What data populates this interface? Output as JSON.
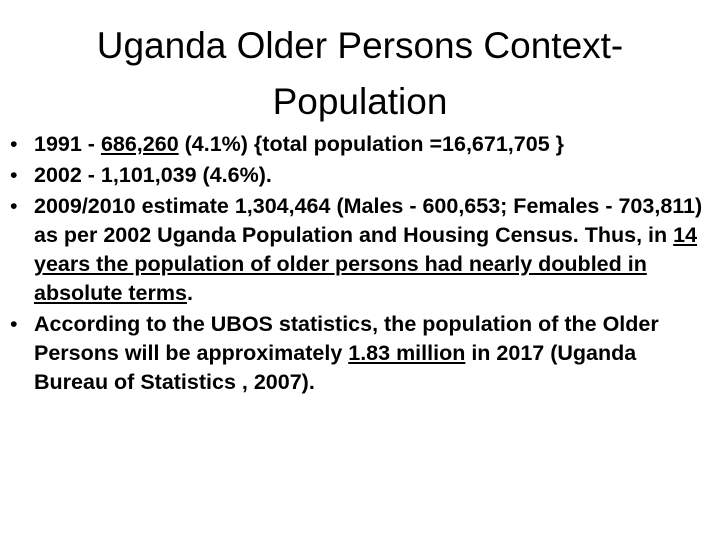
{
  "slide": {
    "title_line1": "Uganda Older Persons Context-",
    "title_line2": "Population",
    "bullet_glyph": "•",
    "bullets": [
      {
        "p1": "1991 - ",
        "u1": "686,260",
        "p2": " (4.1%)  {total population =16,671,705 }"
      },
      {
        "p1": "2002 - 1,101,039 (4.6%)."
      },
      {
        "p1": "2009/2010 estimate 1,304,464 (Males - 600,653; Females - 703,811) as per 2002 Uganda Population and Housing Census. Thus, in ",
        "u1": "14 years the population of older persons had nearly doubled in absolute terms",
        "p2": "."
      },
      {
        "p1": "According to the UBOS statistics, the population of the Older Persons will be approximately ",
        "u1": "1.83 million",
        "p2": " in 2017 (Uganda Bureau of Statistics , 2007)."
      }
    ]
  }
}
